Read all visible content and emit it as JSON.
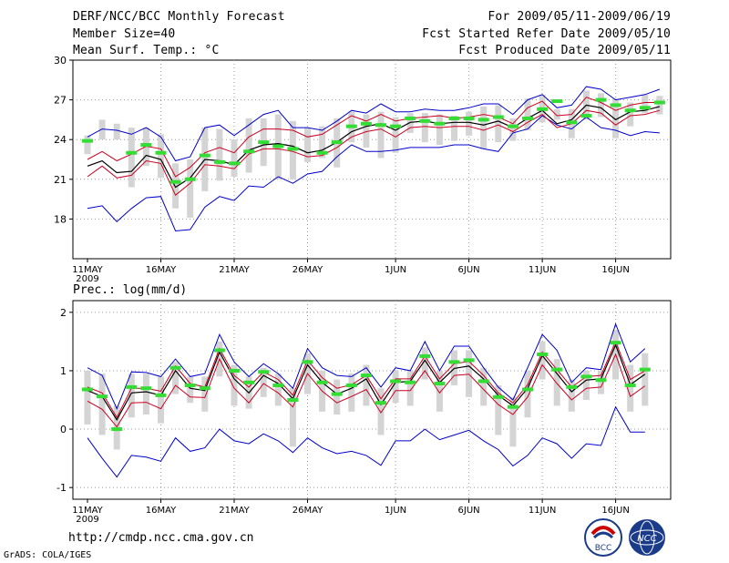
{
  "header": {
    "line1_left": "DERF/NCC/BCC Monthly Forecast",
    "line2_left": "Member Size=40",
    "line3_left": "Mean Surf. Temp.: °C",
    "line1_right": "For 2009/05/11-2009/06/19",
    "line2_right": "Fcst Started Refer Date 2009/05/10",
    "line3_right": "Fcst Produced Date 2009/05/11"
  },
  "footer": {
    "url": "http://cmdp.ncc.cma.gov.cn",
    "credit": "GrADS: COLA/IGES",
    "logo_left": "BCC",
    "logo_right": "NCC"
  },
  "colors": {
    "envelope": "#0000cc",
    "spread": "#cc0022",
    "mean": "#000000",
    "marker": "#33dd33",
    "bar": "#d4d4d4",
    "grid": "#999999"
  },
  "chart_data": [
    {
      "type": "line",
      "title": "Mean Surf. Temp.: °C",
      "x_tick_labels": [
        "11MAY",
        "16MAY",
        "21MAY",
        "26MAY",
        "1JUN",
        "6JUN",
        "11JUN",
        "16JUN"
      ],
      "x_tick_days": [
        1,
        6,
        11,
        16,
        22,
        27,
        32,
        37
      ],
      "x_year_label": "2009",
      "ylim": [
        15,
        30
      ],
      "yticks": [
        18,
        21,
        24,
        27,
        30
      ],
      "series": [
        {
          "name": "max",
          "values": [
            18.8,
            19.0,
            17.8,
            18.8,
            19.6,
            19.7,
            17.1,
            17.2,
            18.9,
            19.7,
            19.4,
            20.5,
            20.4,
            21.2,
            20.7,
            21.4,
            21.6,
            22.7,
            23.6,
            23.1,
            23.1,
            23.2,
            23.4,
            23.4,
            23.4,
            23.6,
            23.6,
            23.3,
            23.1,
            24.5,
            24.8,
            25.8,
            25.1,
            24.8,
            25.7,
            24.9,
            24.7,
            24.3,
            24.6,
            24.5
          ]
        },
        {
          "name": "upper",
          "values": [
            22.5,
            23.1,
            22.4,
            22.9,
            23.5,
            23.3,
            21.2,
            21.9,
            23.0,
            23.4,
            23.0,
            24.2,
            24.8,
            24.8,
            24.7,
            24.2,
            24.4,
            25.1,
            25.8,
            25.4,
            25.9,
            25.4,
            25.6,
            25.7,
            25.8,
            25.6,
            25.7,
            25.9,
            25.7,
            25.2,
            26.4,
            26.9,
            25.8,
            25.9,
            27.2,
            26.8,
            26.2,
            26.6,
            26.8,
            26.8
          ]
        },
        {
          "name": "mean",
          "values": [
            22.0,
            22.4,
            21.5,
            21.6,
            22.8,
            22.5,
            20.4,
            21.1,
            22.5,
            22.4,
            22.1,
            23.2,
            23.6,
            23.7,
            23.5,
            23.0,
            23.2,
            23.8,
            24.6,
            25.0,
            25.2,
            24.7,
            25.3,
            25.4,
            25.2,
            25.3,
            25.3,
            25.1,
            25.4,
            24.9,
            25.6,
            26.2,
            25.2,
            25.5,
            26.6,
            26.4,
            25.5,
            26.1,
            26.2,
            26.5
          ]
        },
        {
          "name": "lower",
          "values": [
            21.2,
            22.0,
            21.1,
            21.3,
            22.4,
            22.2,
            19.8,
            20.7,
            22.1,
            22.0,
            21.8,
            22.9,
            23.3,
            23.3,
            23.1,
            22.7,
            22.8,
            23.4,
            24.2,
            24.6,
            24.8,
            24.2,
            24.9,
            25.0,
            24.9,
            25.0,
            25.0,
            24.7,
            25.1,
            24.6,
            25.3,
            25.9,
            24.9,
            25.2,
            26.2,
            26.0,
            25.1,
            25.8,
            25.9,
            26.2
          ]
        },
        {
          "name": "min",
          "values": [
            18.8,
            19.0,
            17.8,
            18.8,
            19.6,
            19.7,
            17.1,
            17.2,
            18.9,
            19.7,
            19.4,
            20.5,
            20.4,
            21.2,
            20.7,
            21.4,
            21.6,
            22.7,
            23.6,
            23.1,
            23.1,
            23.2,
            23.4,
            23.4,
            23.4,
            23.6,
            23.6,
            23.3,
            23.1,
            24.5,
            24.8,
            25.8,
            25.1,
            24.8,
            25.7,
            24.9,
            24.7,
            24.3,
            24.6,
            24.5
          ]
        },
        {
          "name": "maxline",
          "values": [
            24.2,
            24.8,
            24.7,
            24.4,
            24.9,
            24.2,
            22.4,
            22.7,
            24.9,
            25.1,
            24.3,
            25.1,
            25.9,
            26.2,
            24.9,
            24.9,
            24.7,
            25.4,
            26.2,
            26.0,
            26.7,
            26.1,
            26.1,
            26.3,
            26.2,
            26.2,
            26.4,
            26.7,
            26.7,
            25.9,
            27.0,
            27.4,
            26.4,
            26.6,
            28.0,
            27.8,
            27.0,
            27.2,
            27.4,
            27.8
          ]
        },
        {
          "name": "markers",
          "values": [
            23.9,
            null,
            null,
            23.0,
            23.6,
            23.0,
            20.8,
            21.0,
            22.8,
            22.3,
            22.2,
            23.1,
            23.8,
            23.5,
            23.3,
            null,
            23.0,
            23.8,
            25.0,
            25.2,
            25.1,
            25.0,
            25.6,
            25.4,
            25.2,
            25.6,
            25.6,
            25.5,
            25.7,
            25.0,
            25.6,
            26.3,
            26.9,
            25.3,
            25.8,
            27.0,
            26.6,
            26.2,
            26.4,
            26.8
          ]
        }
      ],
      "bars_low": [
        22.9,
        24.0,
        24.0,
        20.4,
        22.0,
        21.1,
        18.8,
        18.1,
        20.1,
        20.9,
        21.2,
        21.5,
        22.0,
        21.0,
        21.0,
        22.3,
        22.6,
        21.9,
        23.8,
        23.4,
        22.6,
        23.0,
        24.5,
        23.8,
        23.6,
        23.9,
        24.3,
        23.3,
        23.8,
        23.9,
        24.7,
        25.3,
        25.5,
        24.1,
        25.5,
        25.7,
        24.1,
        25.0,
        26.0,
        25.9
      ],
      "bars_high": [
        24.3,
        25.5,
        25.2,
        24.9,
        24.9,
        24.4,
        22.2,
        22.5,
        24.9,
        24.8,
        24.0,
        25.6,
        25.6,
        25.9,
        25.4,
        24.9,
        25.0,
        25.6,
        26.1,
        25.9,
        26.1,
        25.7,
        26.0,
        26.0,
        25.9,
        25.8,
        26.1,
        26.5,
        26.6,
        25.6,
        27.1,
        27.4,
        26.3,
        26.3,
        27.7,
        27.5,
        27.1,
        26.8,
        27.4,
        27.3
      ]
    },
    {
      "type": "line",
      "title": "Prec.: log(mm/d)",
      "x_tick_labels": [
        "11MAY",
        "16MAY",
        "21MAY",
        "26MAY",
        "1JUN",
        "6JUN",
        "11JUN",
        "16JUN"
      ],
      "x_tick_days": [
        1,
        6,
        11,
        16,
        22,
        27,
        32,
        37
      ],
      "x_year_label": "2009",
      "ylim": [
        -1.2,
        2.2
      ],
      "yticks": [
        -1,
        0,
        1,
        2
      ],
      "series": [
        {
          "name": "max",
          "values": [
            1.05,
            0.92,
            0.35,
            0.98,
            0.97,
            0.9,
            1.2,
            0.9,
            0.95,
            1.62,
            1.15,
            0.9,
            1.12,
            0.95,
            0.7,
            1.38,
            1.05,
            0.92,
            0.9,
            1.05,
            0.72,
            1.05,
            1.0,
            1.5,
            1.0,
            1.42,
            1.42,
            1.05,
            0.72,
            0.5,
            1.05,
            1.62,
            1.35,
            0.8,
            1.05,
            1.02,
            1.8,
            1.15,
            1.38
          ]
        },
        {
          "name": "upper",
          "values": [
            0.72,
            0.62,
            0.2,
            0.7,
            0.7,
            0.65,
            1.08,
            0.78,
            0.72,
            1.38,
            0.92,
            0.72,
            0.98,
            0.85,
            0.58,
            1.18,
            0.88,
            0.7,
            0.76,
            0.92,
            0.52,
            0.86,
            0.86,
            1.25,
            0.86,
            1.12,
            1.16,
            0.92,
            0.62,
            0.45,
            0.76,
            1.32,
            1.02,
            0.72,
            0.9,
            0.92,
            1.5,
            0.85,
            1.0
          ]
        },
        {
          "name": "mean",
          "values": [
            0.66,
            0.56,
            0.16,
            0.62,
            0.64,
            0.58,
            1.0,
            0.7,
            0.66,
            1.32,
            0.86,
            0.62,
            0.92,
            0.78,
            0.52,
            1.1,
            0.8,
            0.6,
            0.7,
            0.86,
            0.42,
            0.8,
            0.82,
            1.18,
            0.8,
            1.04,
            1.08,
            0.86,
            0.58,
            0.4,
            0.7,
            1.26,
            0.95,
            0.64,
            0.84,
            0.86,
            1.44,
            0.76,
            0.94
          ]
        },
        {
          "name": "lower",
          "values": [
            0.48,
            0.34,
            0.04,
            0.45,
            0.46,
            0.35,
            0.75,
            0.55,
            0.54,
            1.2,
            0.7,
            0.45,
            0.78,
            0.62,
            0.38,
            0.95,
            0.65,
            0.45,
            0.56,
            0.68,
            0.28,
            0.66,
            0.66,
            1.0,
            0.62,
            0.92,
            0.94,
            0.68,
            0.42,
            0.25,
            0.55,
            1.1,
            0.78,
            0.5,
            0.7,
            0.72,
            1.28,
            0.56,
            0.74
          ]
        },
        {
          "name": "min",
          "values": [
            -0.15,
            -0.5,
            -0.82,
            -0.45,
            -0.48,
            -0.55,
            -0.15,
            -0.38,
            -0.32,
            0.0,
            -0.2,
            -0.25,
            -0.08,
            -0.2,
            -0.4,
            -0.15,
            -0.32,
            -0.42,
            -0.38,
            -0.45,
            -0.62,
            -0.2,
            -0.2,
            0.0,
            -0.18,
            -0.1,
            -0.02,
            -0.2,
            -0.35,
            -0.63,
            -0.45,
            -0.15,
            -0.25,
            -0.5,
            -0.25,
            -0.28,
            0.38,
            -0.05,
            -0.05
          ]
        },
        {
          "name": "markers",
          "values": [
            0.68,
            0.56,
            0.0,
            0.72,
            0.7,
            0.58,
            1.05,
            0.75,
            0.7,
            1.35,
            1.0,
            0.8,
            0.98,
            0.75,
            0.5,
            1.15,
            0.8,
            0.6,
            0.75,
            0.92,
            0.45,
            0.82,
            0.8,
            1.25,
            0.78,
            1.15,
            1.18,
            0.82,
            0.55,
            0.38,
            0.68,
            1.28,
            1.02,
            0.72,
            0.9,
            0.84,
            1.48,
            0.75,
            1.02
          ]
        }
      ],
      "bars_low": [
        0.08,
        -0.1,
        -0.35,
        0.2,
        0.25,
        0.1,
        0.6,
        0.45,
        0.3,
        0.9,
        0.4,
        0.35,
        0.55,
        0.4,
        -0.3,
        0.6,
        0.3,
        0.25,
        0.3,
        0.4,
        -0.1,
        0.45,
        0.4,
        0.85,
        0.3,
        0.75,
        0.55,
        0.4,
        -0.1,
        -0.3,
        0.2,
        0.85,
        0.4,
        0.3,
        0.5,
        0.6,
        0.85,
        0.3,
        0.4
      ],
      "bars_high": [
        1.0,
        0.95,
        0.4,
        0.95,
        0.95,
        0.9,
        1.15,
        0.9,
        0.9,
        1.5,
        1.1,
        0.9,
        1.05,
        0.95,
        0.7,
        1.3,
        1.0,
        0.85,
        0.95,
        1.1,
        0.7,
        1.0,
        1.0,
        1.4,
        1.0,
        1.35,
        1.35,
        1.05,
        0.75,
        0.55,
        1.0,
        1.5,
        1.2,
        0.85,
        1.0,
        1.0,
        1.7,
        1.1,
        1.3
      ]
    }
  ]
}
